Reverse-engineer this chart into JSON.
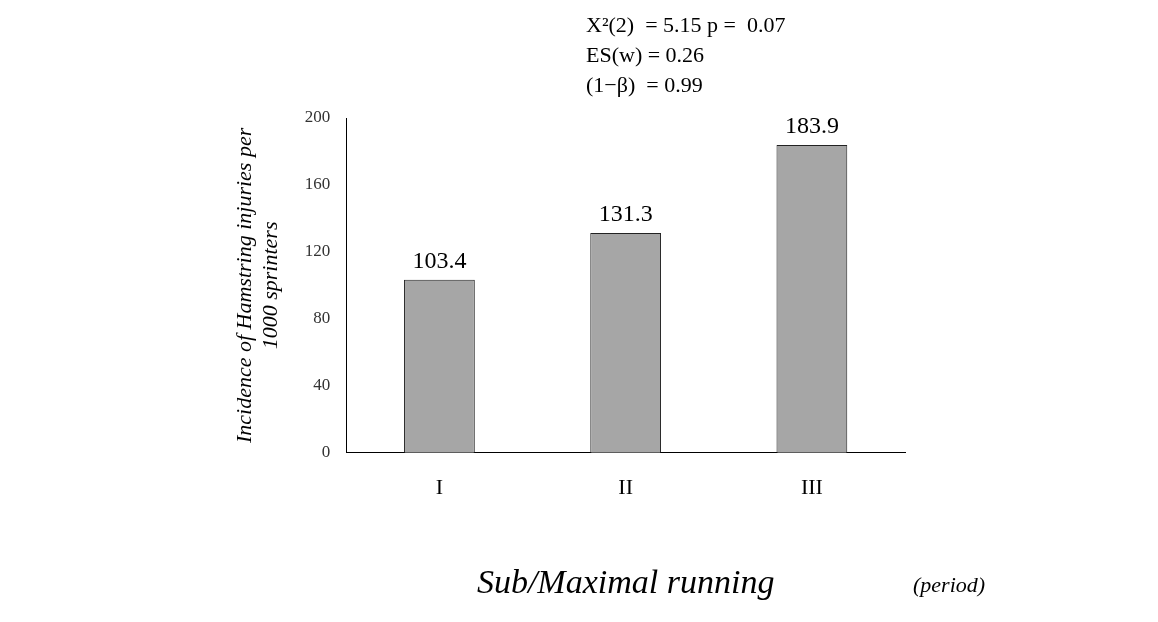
{
  "chart_data": {
    "type": "bar",
    "categories": [
      "I",
      "II",
      "III"
    ],
    "values": [
      103.4,
      131.3,
      183.9
    ],
    "color": "#a6a6a6",
    "ylim": [
      0,
      200
    ],
    "yticks": [
      0,
      40,
      80,
      120,
      160,
      200
    ],
    "grid": false,
    "data_labels": true,
    "xlabel": "Sub/Maximal running",
    "ylabel": "Incidence of Hamstring injuries per 1000 sprinters",
    "annotations": [
      "X²(2)  = 5.15 p =  0.07",
      "ES(w) = 0.26",
      "(1−β)  = 0.99",
      "(period)"
    ]
  }
}
